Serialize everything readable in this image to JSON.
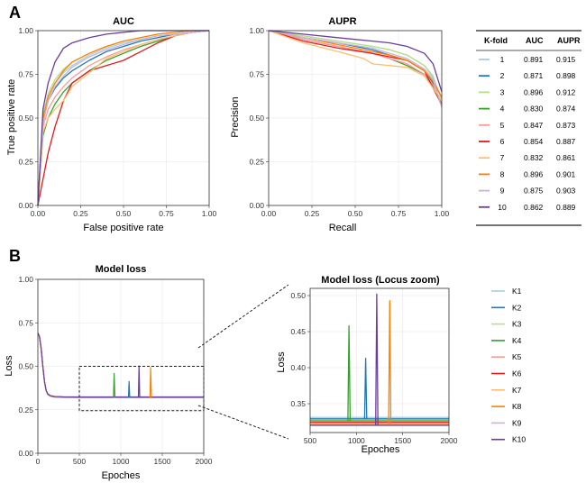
{
  "panel_labels": [
    "A",
    "B"
  ],
  "colors": [
    "#a6cee3",
    "#1f78b4",
    "#b2df8a",
    "#33a02c",
    "#fb9a99",
    "#e31a1c",
    "#fdbf6f",
    "#ff7f00",
    "#cab2d6",
    "#6a3d9a"
  ],
  "legend_b": [
    "K1",
    "K2",
    "K3",
    "K4",
    "K5",
    "K6",
    "K7",
    "K8",
    "K9",
    "K10"
  ],
  "table": {
    "headers": [
      "K-fold",
      "AUC",
      "AUPR"
    ],
    "rows": [
      {
        "k": "1",
        "auc": "0.891",
        "aupr": "0.915"
      },
      {
        "k": "2",
        "auc": "0.871",
        "aupr": "0.898"
      },
      {
        "k": "3",
        "auc": "0.896",
        "aupr": "0.912"
      },
      {
        "k": "4",
        "auc": "0.830",
        "aupr": "0.874"
      },
      {
        "k": "5",
        "auc": "0.847",
        "aupr": "0.873"
      },
      {
        "k": "6",
        "auc": "0.854",
        "aupr": "0.887"
      },
      {
        "k": "7",
        "auc": "0.832",
        "aupr": "0.861"
      },
      {
        "k": "8",
        "auc": "0.896",
        "aupr": "0.901"
      },
      {
        "k": "9",
        "auc": "0.875",
        "aupr": "0.903"
      },
      {
        "k": "10",
        "auc": "0.862",
        "aupr": "0.889"
      }
    ]
  },
  "chart_data": [
    {
      "type": "line",
      "title": "AUC",
      "xlabel": "False positive rate",
      "ylabel": "True positive rate",
      "xlim": [
        0,
        1
      ],
      "ylim": [
        0,
        1
      ],
      "xticks": [
        "0.00",
        "0.25",
        "0.50",
        "0.75",
        "1.00"
      ],
      "yticks": [
        "0.00",
        "0.25",
        "0.50",
        "0.75",
        "1.00"
      ],
      "grid": true,
      "series": [
        {
          "x": [
            0,
            0.03,
            0.06,
            0.1,
            0.15,
            0.2,
            0.3,
            0.4,
            0.5,
            0.6,
            0.7,
            0.8,
            0.9,
            1
          ],
          "y": [
            0,
            0.5,
            0.62,
            0.7,
            0.76,
            0.8,
            0.86,
            0.9,
            0.93,
            0.95,
            0.97,
            0.98,
            0.99,
            1
          ]
        },
        {
          "x": [
            0,
            0.03,
            0.06,
            0.1,
            0.15,
            0.2,
            0.3,
            0.4,
            0.5,
            0.6,
            0.7,
            0.8,
            0.9,
            1
          ],
          "y": [
            0,
            0.48,
            0.6,
            0.67,
            0.73,
            0.77,
            0.83,
            0.88,
            0.91,
            0.94,
            0.96,
            0.98,
            0.99,
            1
          ]
        },
        {
          "x": [
            0,
            0.03,
            0.06,
            0.1,
            0.15,
            0.2,
            0.3,
            0.4,
            0.5,
            0.6,
            0.7,
            0.8,
            0.9,
            1
          ],
          "y": [
            0,
            0.52,
            0.64,
            0.72,
            0.78,
            0.82,
            0.87,
            0.91,
            0.94,
            0.96,
            0.98,
            0.99,
            1,
            1
          ]
        },
        {
          "x": [
            0,
            0.03,
            0.06,
            0.1,
            0.15,
            0.2,
            0.3,
            0.4,
            0.5,
            0.6,
            0.7,
            0.8,
            0.9,
            1
          ],
          "y": [
            0,
            0.4,
            0.5,
            0.58,
            0.65,
            0.7,
            0.77,
            0.83,
            0.87,
            0.91,
            0.94,
            0.97,
            0.99,
            1
          ]
        },
        {
          "x": [
            0,
            0.03,
            0.06,
            0.1,
            0.15,
            0.2,
            0.3,
            0.4,
            0.5,
            0.6,
            0.7,
            0.8,
            0.9,
            1
          ],
          "y": [
            0,
            0.45,
            0.55,
            0.62,
            0.68,
            0.73,
            0.8,
            0.85,
            0.89,
            0.92,
            0.95,
            0.97,
            0.99,
            1
          ]
        },
        {
          "x": [
            0,
            0.03,
            0.06,
            0.1,
            0.15,
            0.2,
            0.3,
            0.4,
            0.5,
            0.6,
            0.7,
            0.8,
            0.9,
            1
          ],
          "y": [
            0,
            0.15,
            0.3,
            0.45,
            0.6,
            0.7,
            0.77,
            0.8,
            0.83,
            0.88,
            0.93,
            0.97,
            0.99,
            1
          ]
        },
        {
          "x": [
            0,
            0.03,
            0.06,
            0.1,
            0.15,
            0.2,
            0.3,
            0.4,
            0.5,
            0.6,
            0.7,
            0.8,
            0.9,
            1
          ],
          "y": [
            0,
            0.42,
            0.5,
            0.55,
            0.6,
            0.68,
            0.76,
            0.84,
            0.88,
            0.92,
            0.95,
            0.97,
            0.99,
            1
          ]
        },
        {
          "x": [
            0,
            0.03,
            0.06,
            0.1,
            0.15,
            0.2,
            0.3,
            0.4,
            0.5,
            0.6,
            0.7,
            0.8,
            0.9,
            1
          ],
          "y": [
            0,
            0.5,
            0.62,
            0.7,
            0.77,
            0.82,
            0.87,
            0.91,
            0.94,
            0.96,
            0.98,
            0.99,
            1,
            1
          ]
        },
        {
          "x": [
            0,
            0.03,
            0.06,
            0.1,
            0.15,
            0.2,
            0.3,
            0.4,
            0.5,
            0.6,
            0.7,
            0.8,
            0.9,
            1
          ],
          "y": [
            0,
            0.47,
            0.6,
            0.68,
            0.74,
            0.79,
            0.85,
            0.89,
            0.92,
            0.95,
            0.97,
            0.98,
            0.99,
            1
          ]
        },
        {
          "x": [
            0,
            0.03,
            0.06,
            0.1,
            0.15,
            0.2,
            0.3,
            0.4,
            0.5,
            0.6,
            0.7,
            0.8,
            0.9,
            1
          ],
          "y": [
            0,
            0.55,
            0.7,
            0.82,
            0.9,
            0.93,
            0.96,
            0.98,
            0.99,
            1,
            1,
            1,
            1,
            1
          ]
        }
      ]
    },
    {
      "type": "line",
      "title": "AUPR",
      "xlabel": "Recall",
      "ylabel": "Precision",
      "xlim": [
        0,
        1
      ],
      "ylim": [
        0,
        1
      ],
      "xticks": [
        "0.00",
        "0.25",
        "0.50",
        "0.75",
        "1.00"
      ],
      "yticks": [
        "0.00",
        "0.25",
        "0.50",
        "0.75",
        "1.00"
      ],
      "grid": true,
      "series": [
        {
          "x": [
            0,
            0.2,
            0.4,
            0.6,
            0.7,
            0.8,
            0.9,
            0.95,
            1
          ],
          "y": [
            1,
            0.97,
            0.94,
            0.91,
            0.89,
            0.86,
            0.8,
            0.74,
            0.6
          ]
        },
        {
          "x": [
            0,
            0.2,
            0.4,
            0.6,
            0.7,
            0.8,
            0.9,
            0.95,
            1
          ],
          "y": [
            1,
            0.96,
            0.93,
            0.89,
            0.86,
            0.83,
            0.77,
            0.7,
            0.62
          ]
        },
        {
          "x": [
            0,
            0.2,
            0.4,
            0.6,
            0.7,
            0.8,
            0.9,
            0.95,
            1
          ],
          "y": [
            1,
            0.97,
            0.94,
            0.91,
            0.89,
            0.86,
            0.8,
            0.73,
            0.6
          ]
        },
        {
          "x": [
            0,
            0.2,
            0.4,
            0.6,
            0.7,
            0.8,
            0.9,
            0.95,
            1
          ],
          "y": [
            1,
            0.95,
            0.91,
            0.87,
            0.84,
            0.8,
            0.75,
            0.68,
            0.57
          ]
        },
        {
          "x": [
            0,
            0.2,
            0.4,
            0.6,
            0.7,
            0.8,
            0.9,
            0.95,
            1
          ],
          "y": [
            1,
            0.95,
            0.91,
            0.87,
            0.84,
            0.81,
            0.75,
            0.69,
            0.58
          ]
        },
        {
          "x": [
            0,
            0.2,
            0.4,
            0.6,
            0.7,
            0.8,
            0.9,
            0.95,
            1
          ],
          "y": [
            1,
            0.94,
            0.9,
            0.87,
            0.85,
            0.83,
            0.77,
            0.67,
            0.58
          ]
        },
        {
          "x": [
            0,
            0.2,
            0.4,
            0.55,
            0.6,
            0.7,
            0.8,
            0.9,
            1
          ],
          "y": [
            1,
            0.93,
            0.88,
            0.84,
            0.81,
            0.8,
            0.79,
            0.74,
            0.6
          ]
        },
        {
          "x": [
            0,
            0.2,
            0.4,
            0.6,
            0.7,
            0.8,
            0.9,
            0.95,
            1
          ],
          "y": [
            1,
            0.96,
            0.92,
            0.88,
            0.86,
            0.83,
            0.77,
            0.71,
            0.62
          ]
        },
        {
          "x": [
            0,
            0.2,
            0.4,
            0.6,
            0.7,
            0.8,
            0.9,
            0.95,
            1
          ],
          "y": [
            1,
            0.96,
            0.93,
            0.9,
            0.87,
            0.84,
            0.78,
            0.72,
            0.56
          ]
        },
        {
          "x": [
            0,
            0.2,
            0.4,
            0.6,
            0.7,
            0.8,
            0.9,
            0.95,
            1
          ],
          "y": [
            1,
            0.98,
            0.96,
            0.94,
            0.93,
            0.91,
            0.87,
            0.81,
            0.65
          ]
        }
      ]
    },
    {
      "type": "line",
      "title": "Model loss",
      "xlabel": "Epoches",
      "ylabel": "Loss",
      "xlim": [
        0,
        2000
      ],
      "ylim": [
        0,
        1
      ],
      "xticks": [
        "0",
        "500",
        "1000",
        "1500",
        "2000"
      ],
      "yticks": [
        "0.00",
        "0.25",
        "0.50",
        "0.75",
        "1.00"
      ],
      "grid": true,
      "base_curve": {
        "x": [
          0,
          20,
          40,
          60,
          80,
          100,
          120,
          150,
          200,
          300,
          500,
          2000
        ],
        "y": [
          0.69,
          0.67,
          0.6,
          0.5,
          0.41,
          0.36,
          0.34,
          0.33,
          0.325,
          0.323,
          0.322,
          0.322
        ]
      },
      "spikes": [
        {
          "series": "K4",
          "x": 920,
          "y": 0.458
        },
        {
          "series": "K2",
          "x": 1100,
          "y": 0.413
        },
        {
          "series": "K10",
          "x": 1220,
          "y": 0.502
        },
        {
          "series": "K8",
          "x": 1360,
          "y": 0.493
        }
      ]
    },
    {
      "type": "line",
      "title": "Model loss (Locus zoom)",
      "xlabel": "Epoches",
      "ylabel": "Loss",
      "xlim": [
        500,
        2000
      ],
      "ylim": [
        0.31,
        0.51
      ],
      "xticks": [
        "500",
        "1000",
        "1500",
        "2000"
      ],
      "yticks": [
        "0.35",
        "0.40",
        "0.45",
        "0.50"
      ],
      "grid": true,
      "levels": [
        0.331,
        0.329,
        0.327,
        0.326,
        0.325,
        0.324,
        0.323,
        0.322,
        0.321,
        0.32
      ],
      "spikes": [
        {
          "series": "K4",
          "x": 920,
          "y": 0.458
        },
        {
          "series": "K2",
          "x": 1100,
          "y": 0.413
        },
        {
          "series": "K10",
          "x": 1220,
          "y": 0.502
        },
        {
          "series": "K8",
          "x": 1360,
          "y": 0.493
        }
      ]
    }
  ]
}
